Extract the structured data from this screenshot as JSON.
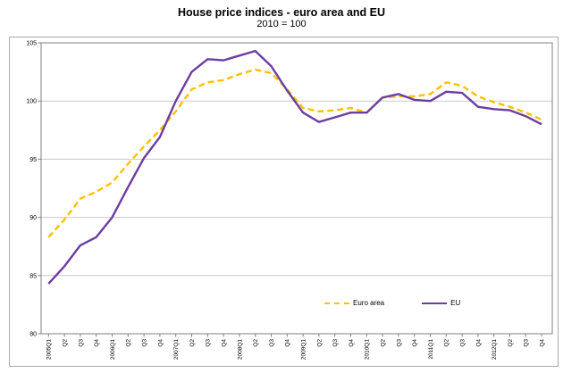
{
  "title": "House price indices - euro area and EU",
  "subtitle": "2010 = 100",
  "colors": {
    "euro_area": "#FFC000",
    "eu": "#6B3EA0",
    "grid": "#C9C9C9",
    "plot_border": "#7F7F7F",
    "outer_border": "#ABABAB",
    "text": "#000000"
  },
  "legend": {
    "items": [
      {
        "label": "Euro area",
        "style": "dashed"
      },
      {
        "label": "EU",
        "style": "solid"
      }
    ]
  },
  "chart_data": {
    "type": "line",
    "title": "House price indices - euro area and EU",
    "subtitle": "2010 = 100",
    "categories": [
      "2005Q1",
      "Q2",
      "Q3",
      "Q4",
      "2006Q1",
      "Q2",
      "Q3",
      "Q4",
      "2007Q1",
      "Q2",
      "Q3",
      "Q4",
      "2008Q1",
      "Q2",
      "Q3",
      "Q4",
      "2009Q1",
      "Q2",
      "Q3",
      "Q4",
      "2010Q1",
      "Q2",
      "Q3",
      "Q4",
      "2011Q1",
      "Q2",
      "Q3",
      "Q4",
      "2012Q1",
      "Q2",
      "Q3",
      "Q4"
    ],
    "series": [
      {
        "name": "Euro area",
        "color": "#FFC000",
        "style": "dashed",
        "values": [
          88.3,
          89.8,
          91.6,
          92.2,
          93.0,
          94.6,
          96.1,
          97.5,
          99.1,
          101.0,
          101.6,
          101.8,
          102.3,
          102.7,
          102.4,
          101.0,
          99.4,
          99.1,
          99.2,
          99.4,
          99.0,
          100.3,
          100.4,
          100.4,
          100.6,
          101.6,
          101.3,
          100.4,
          99.9,
          99.5,
          99.0,
          98.4
        ]
      },
      {
        "name": "EU",
        "color": "#6B3EA0",
        "style": "solid",
        "values": [
          84.3,
          85.8,
          87.6,
          88.3,
          90.0,
          92.6,
          95.1,
          96.9,
          100.0,
          102.5,
          103.6,
          103.5,
          103.9,
          104.3,
          103.0,
          100.9,
          99.0,
          98.2,
          98.6,
          99.0,
          99.0,
          100.3,
          100.6,
          100.1,
          100.0,
          100.8,
          100.7,
          99.5,
          99.3,
          99.2,
          98.7,
          98.0
        ]
      }
    ],
    "ylim": [
      80,
      105
    ],
    "yticks": [
      80,
      85,
      90,
      95,
      100,
      105
    ],
    "xlabel": "",
    "ylabel": "",
    "grid": true,
    "legend_position": "inside-bottom-right-of-center"
  }
}
